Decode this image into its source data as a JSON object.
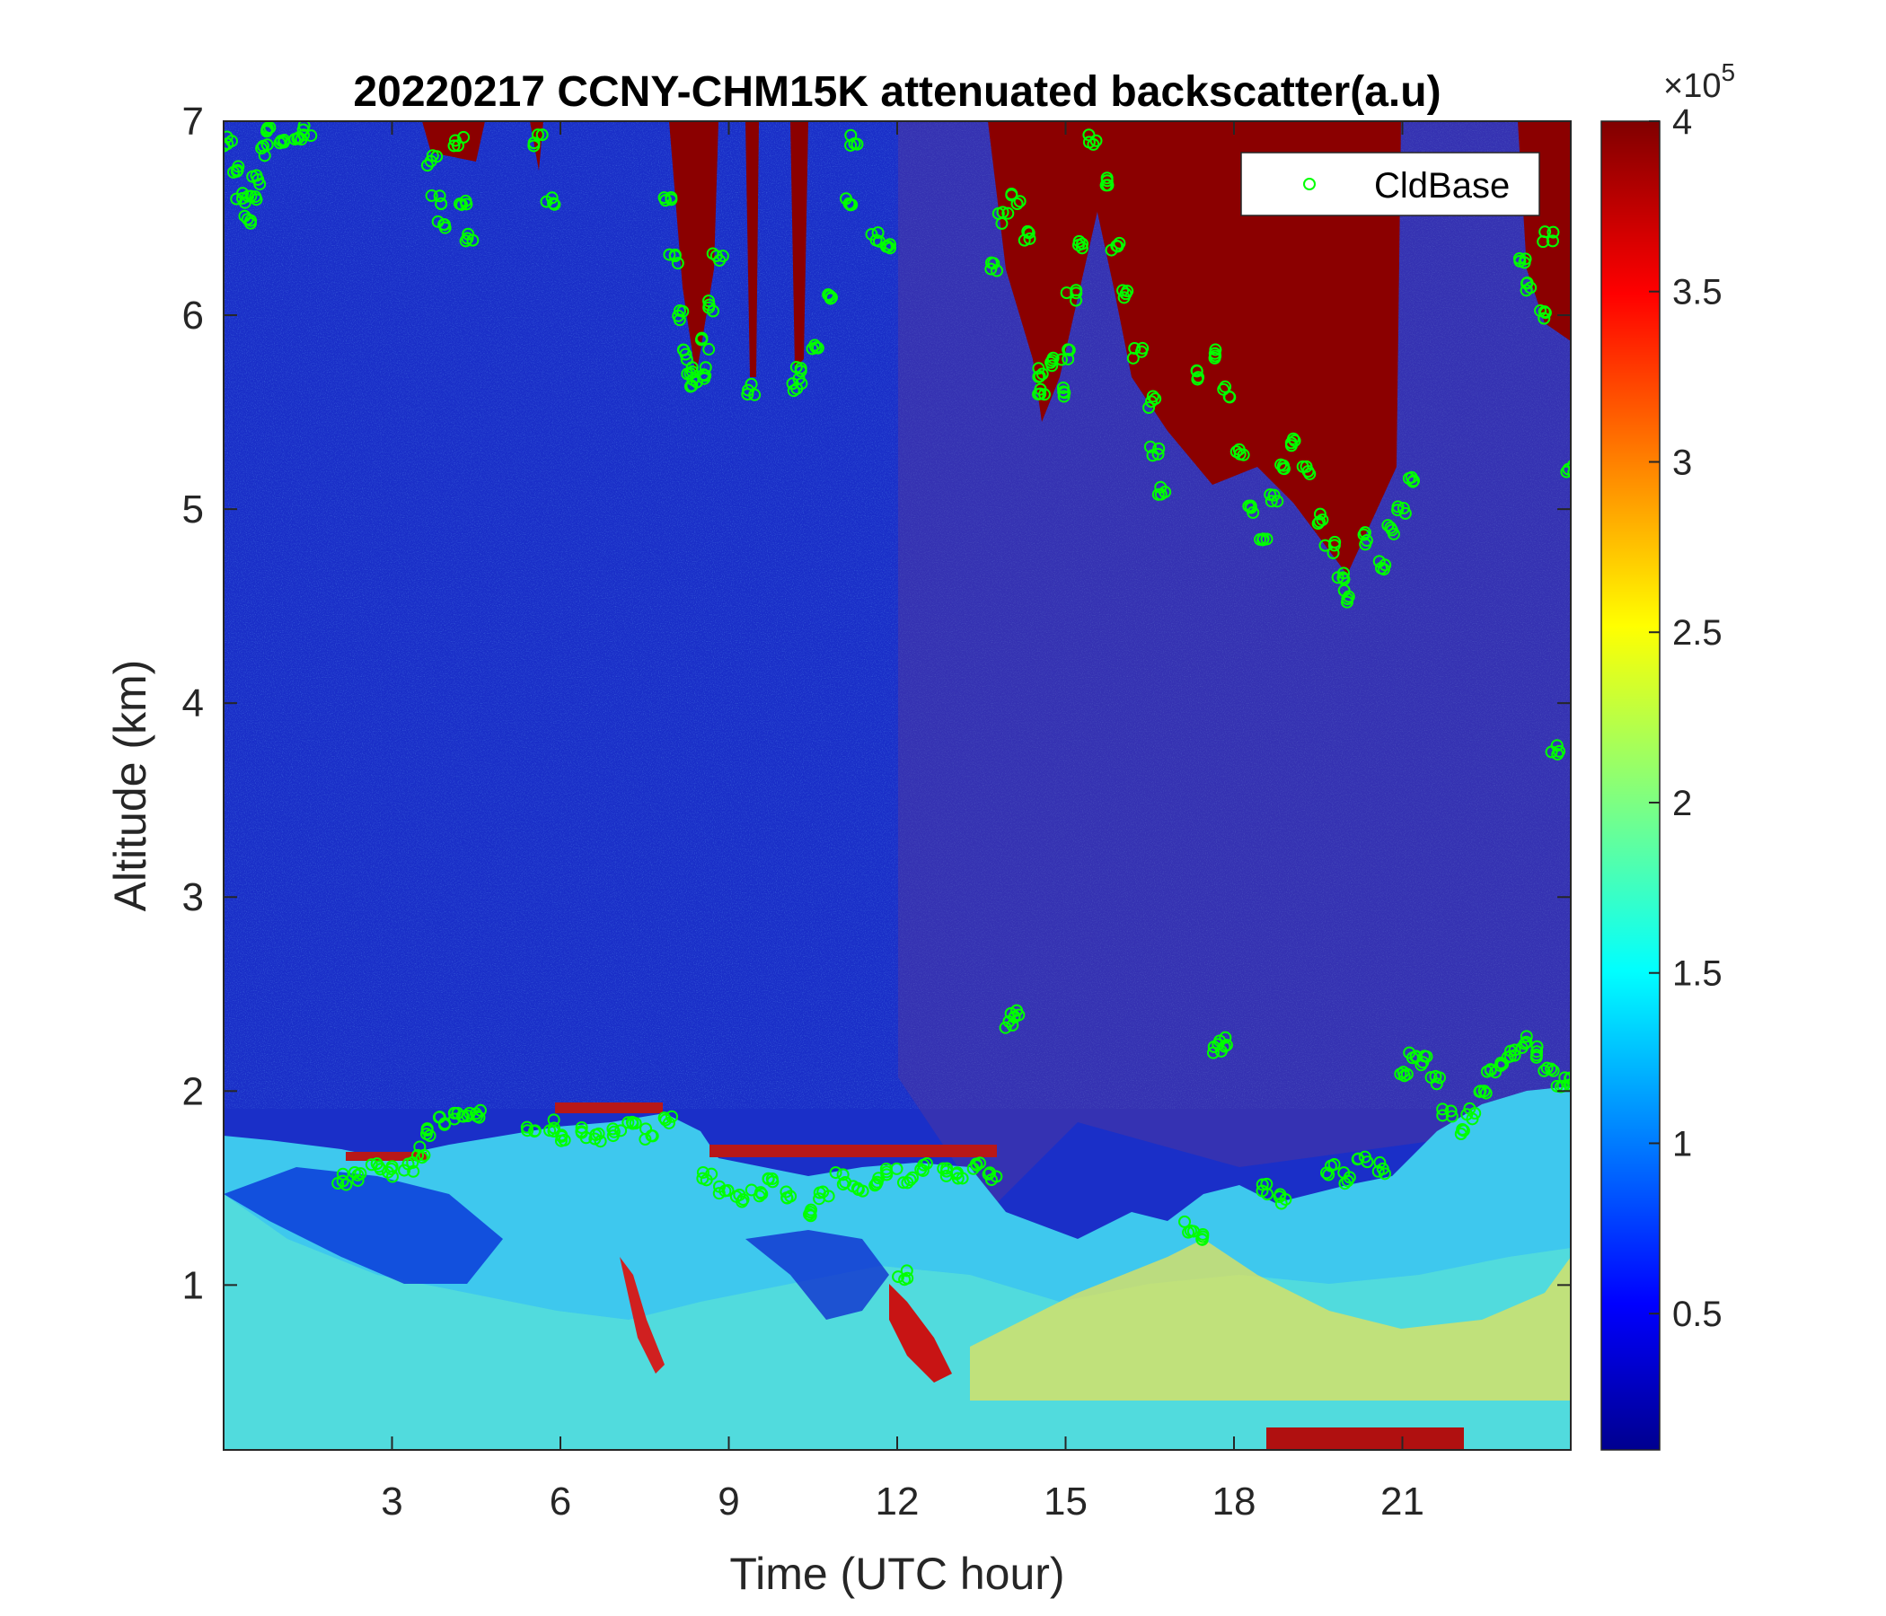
{
  "chart_data": {
    "type": "heatmap",
    "title": "20220217 CCNY-CHM15K attenuated backscatter(a.u)",
    "xlabel": "Time (UTC hour)",
    "ylabel": "Altitude (km)",
    "xlim": [
      0,
      24
    ],
    "ylim": [
      0.15,
      7
    ],
    "xticks": [
      3,
      6,
      9,
      12,
      15,
      18,
      21
    ],
    "yticks": [
      1,
      2,
      3,
      4,
      5,
      6,
      7
    ],
    "colormap": "jet",
    "colorbar": {
      "range": [
        0.1,
        4
      ],
      "ticks": [
        0.5,
        1,
        1.5,
        2,
        2.5,
        3,
        3.5,
        4
      ],
      "exponent_label": "×10",
      "exponent": "5"
    },
    "legend": {
      "location": "top-right",
      "entries": [
        {
          "name": "CldBase",
          "marker": "open-circle",
          "color": "#00ff00"
        }
      ]
    },
    "series": [
      {
        "name": "CldBase",
        "points": [
          [
            0.1,
            6.9
          ],
          [
            0.2,
            6.75
          ],
          [
            0.3,
            6.6
          ],
          [
            0.4,
            6.5
          ],
          [
            0.5,
            6.6
          ],
          [
            0.6,
            6.7
          ],
          [
            0.7,
            6.85
          ],
          [
            0.8,
            6.95
          ],
          [
            1.0,
            6.9
          ],
          [
            1.3,
            6.9
          ],
          [
            1.5,
            6.95
          ],
          [
            3.7,
            6.8
          ],
          [
            3.8,
            6.6
          ],
          [
            3.9,
            6.45
          ],
          [
            4.2,
            6.9
          ],
          [
            4.3,
            6.6
          ],
          [
            4.4,
            6.4
          ],
          [
            5.6,
            6.9
          ],
          [
            5.8,
            6.6
          ],
          [
            7.9,
            6.6
          ],
          [
            8.0,
            6.3
          ],
          [
            8.1,
            6.0
          ],
          [
            8.2,
            5.8
          ],
          [
            8.3,
            5.7
          ],
          [
            8.4,
            5.65
          ],
          [
            8.5,
            5.7
          ],
          [
            8.6,
            5.85
          ],
          [
            8.7,
            6.05
          ],
          [
            8.8,
            6.3
          ],
          [
            9.4,
            5.62
          ],
          [
            10.2,
            5.62
          ],
          [
            10.3,
            5.7
          ],
          [
            10.5,
            5.85
          ],
          [
            10.8,
            6.1
          ],
          [
            11.1,
            6.6
          ],
          [
            11.2,
            6.9
          ],
          [
            11.6,
            6.4
          ],
          [
            11.8,
            6.35
          ],
          [
            13.7,
            6.25
          ],
          [
            13.9,
            6.5
          ],
          [
            14.1,
            6.6
          ],
          [
            14.3,
            6.4
          ],
          [
            14.5,
            5.7
          ],
          [
            14.6,
            5.6
          ],
          [
            14.7,
            5.75
          ],
          [
            14.9,
            5.6
          ],
          [
            15.0,
            5.8
          ],
          [
            15.1,
            6.1
          ],
          [
            15.3,
            6.35
          ],
          [
            15.5,
            6.9
          ],
          [
            15.7,
            6.7
          ],
          [
            15.9,
            6.35
          ],
          [
            16.1,
            6.1
          ],
          [
            16.3,
            5.8
          ],
          [
            16.5,
            5.55
          ],
          [
            16.6,
            5.3
          ],
          [
            16.7,
            5.1
          ],
          [
            17.3,
            5.7
          ],
          [
            17.6,
            5.8
          ],
          [
            17.9,
            5.6
          ],
          [
            18.1,
            5.3
          ],
          [
            18.3,
            5.0
          ],
          [
            18.5,
            4.85
          ],
          [
            18.7,
            5.05
          ],
          [
            18.9,
            5.2
          ],
          [
            19.1,
            5.35
          ],
          [
            19.3,
            5.2
          ],
          [
            19.5,
            4.95
          ],
          [
            19.7,
            4.8
          ],
          [
            19.9,
            4.65
          ],
          [
            20.0,
            4.55
          ],
          [
            20.3,
            4.85
          ],
          [
            20.6,
            4.7
          ],
          [
            20.8,
            4.9
          ],
          [
            21.0,
            5.0
          ],
          [
            21.2,
            5.15
          ],
          [
            23.1,
            6.3
          ],
          [
            23.3,
            6.15
          ],
          [
            23.5,
            6.0
          ],
          [
            23.6,
            6.4
          ],
          [
            23.7,
            3.75
          ],
          [
            24.0,
            5.2
          ],
          [
            2.1,
            1.55
          ],
          [
            2.4,
            1.57
          ],
          [
            2.7,
            1.6
          ],
          [
            3.0,
            1.58
          ],
          [
            3.3,
            1.6
          ],
          [
            3.5,
            1.68
          ],
          [
            3.7,
            1.78
          ],
          [
            3.9,
            1.85
          ],
          [
            4.1,
            1.88
          ],
          [
            4.3,
            1.9
          ],
          [
            4.5,
            1.88
          ],
          [
            5.5,
            1.8
          ],
          [
            5.8,
            1.82
          ],
          [
            6.1,
            1.76
          ],
          [
            6.4,
            1.78
          ],
          [
            6.7,
            1.75
          ],
          [
            7.0,
            1.8
          ],
          [
            7.3,
            1.82
          ],
          [
            7.6,
            1.78
          ],
          [
            7.9,
            1.84
          ],
          [
            8.6,
            1.55
          ],
          [
            8.9,
            1.5
          ],
          [
            9.2,
            1.45
          ],
          [
            9.5,
            1.48
          ],
          [
            9.8,
            1.55
          ],
          [
            10.1,
            1.45
          ],
          [
            10.4,
            1.38
          ],
          [
            10.7,
            1.45
          ],
          [
            11.0,
            1.55
          ],
          [
            11.3,
            1.5
          ],
          [
            11.6,
            1.52
          ],
          [
            11.9,
            1.58
          ],
          [
            12.2,
            1.55
          ],
          [
            12.5,
            1.6
          ],
          [
            12.8,
            1.57
          ],
          [
            13.1,
            1.58
          ],
          [
            13.4,
            1.6
          ],
          [
            13.7,
            1.55
          ],
          [
            12.1,
            1.05
          ],
          [
            14.0,
            2.35
          ],
          [
            14.1,
            2.4
          ],
          [
            17.2,
            1.3
          ],
          [
            17.4,
            1.25
          ],
          [
            17.7,
            2.22
          ],
          [
            17.8,
            2.25
          ],
          [
            18.6,
            1.5
          ],
          [
            18.9,
            1.45
          ],
          [
            19.7,
            1.6
          ],
          [
            20.0,
            1.55
          ],
          [
            20.3,
            1.65
          ],
          [
            20.6,
            1.6
          ],
          [
            21.0,
            2.1
          ],
          [
            21.2,
            2.2
          ],
          [
            21.4,
            2.15
          ],
          [
            21.6,
            2.05
          ],
          [
            21.8,
            1.9
          ],
          [
            22.0,
            1.78
          ],
          [
            22.2,
            1.88
          ],
          [
            22.4,
            2.0
          ],
          [
            22.6,
            2.1
          ],
          [
            22.8,
            2.15
          ],
          [
            23.0,
            2.2
          ],
          [
            23.2,
            2.25
          ],
          [
            23.4,
            2.2
          ],
          [
            23.6,
            2.1
          ],
          [
            23.8,
            2.05
          ],
          [
            24.0,
            2.05
          ]
        ]
      }
    ]
  }
}
